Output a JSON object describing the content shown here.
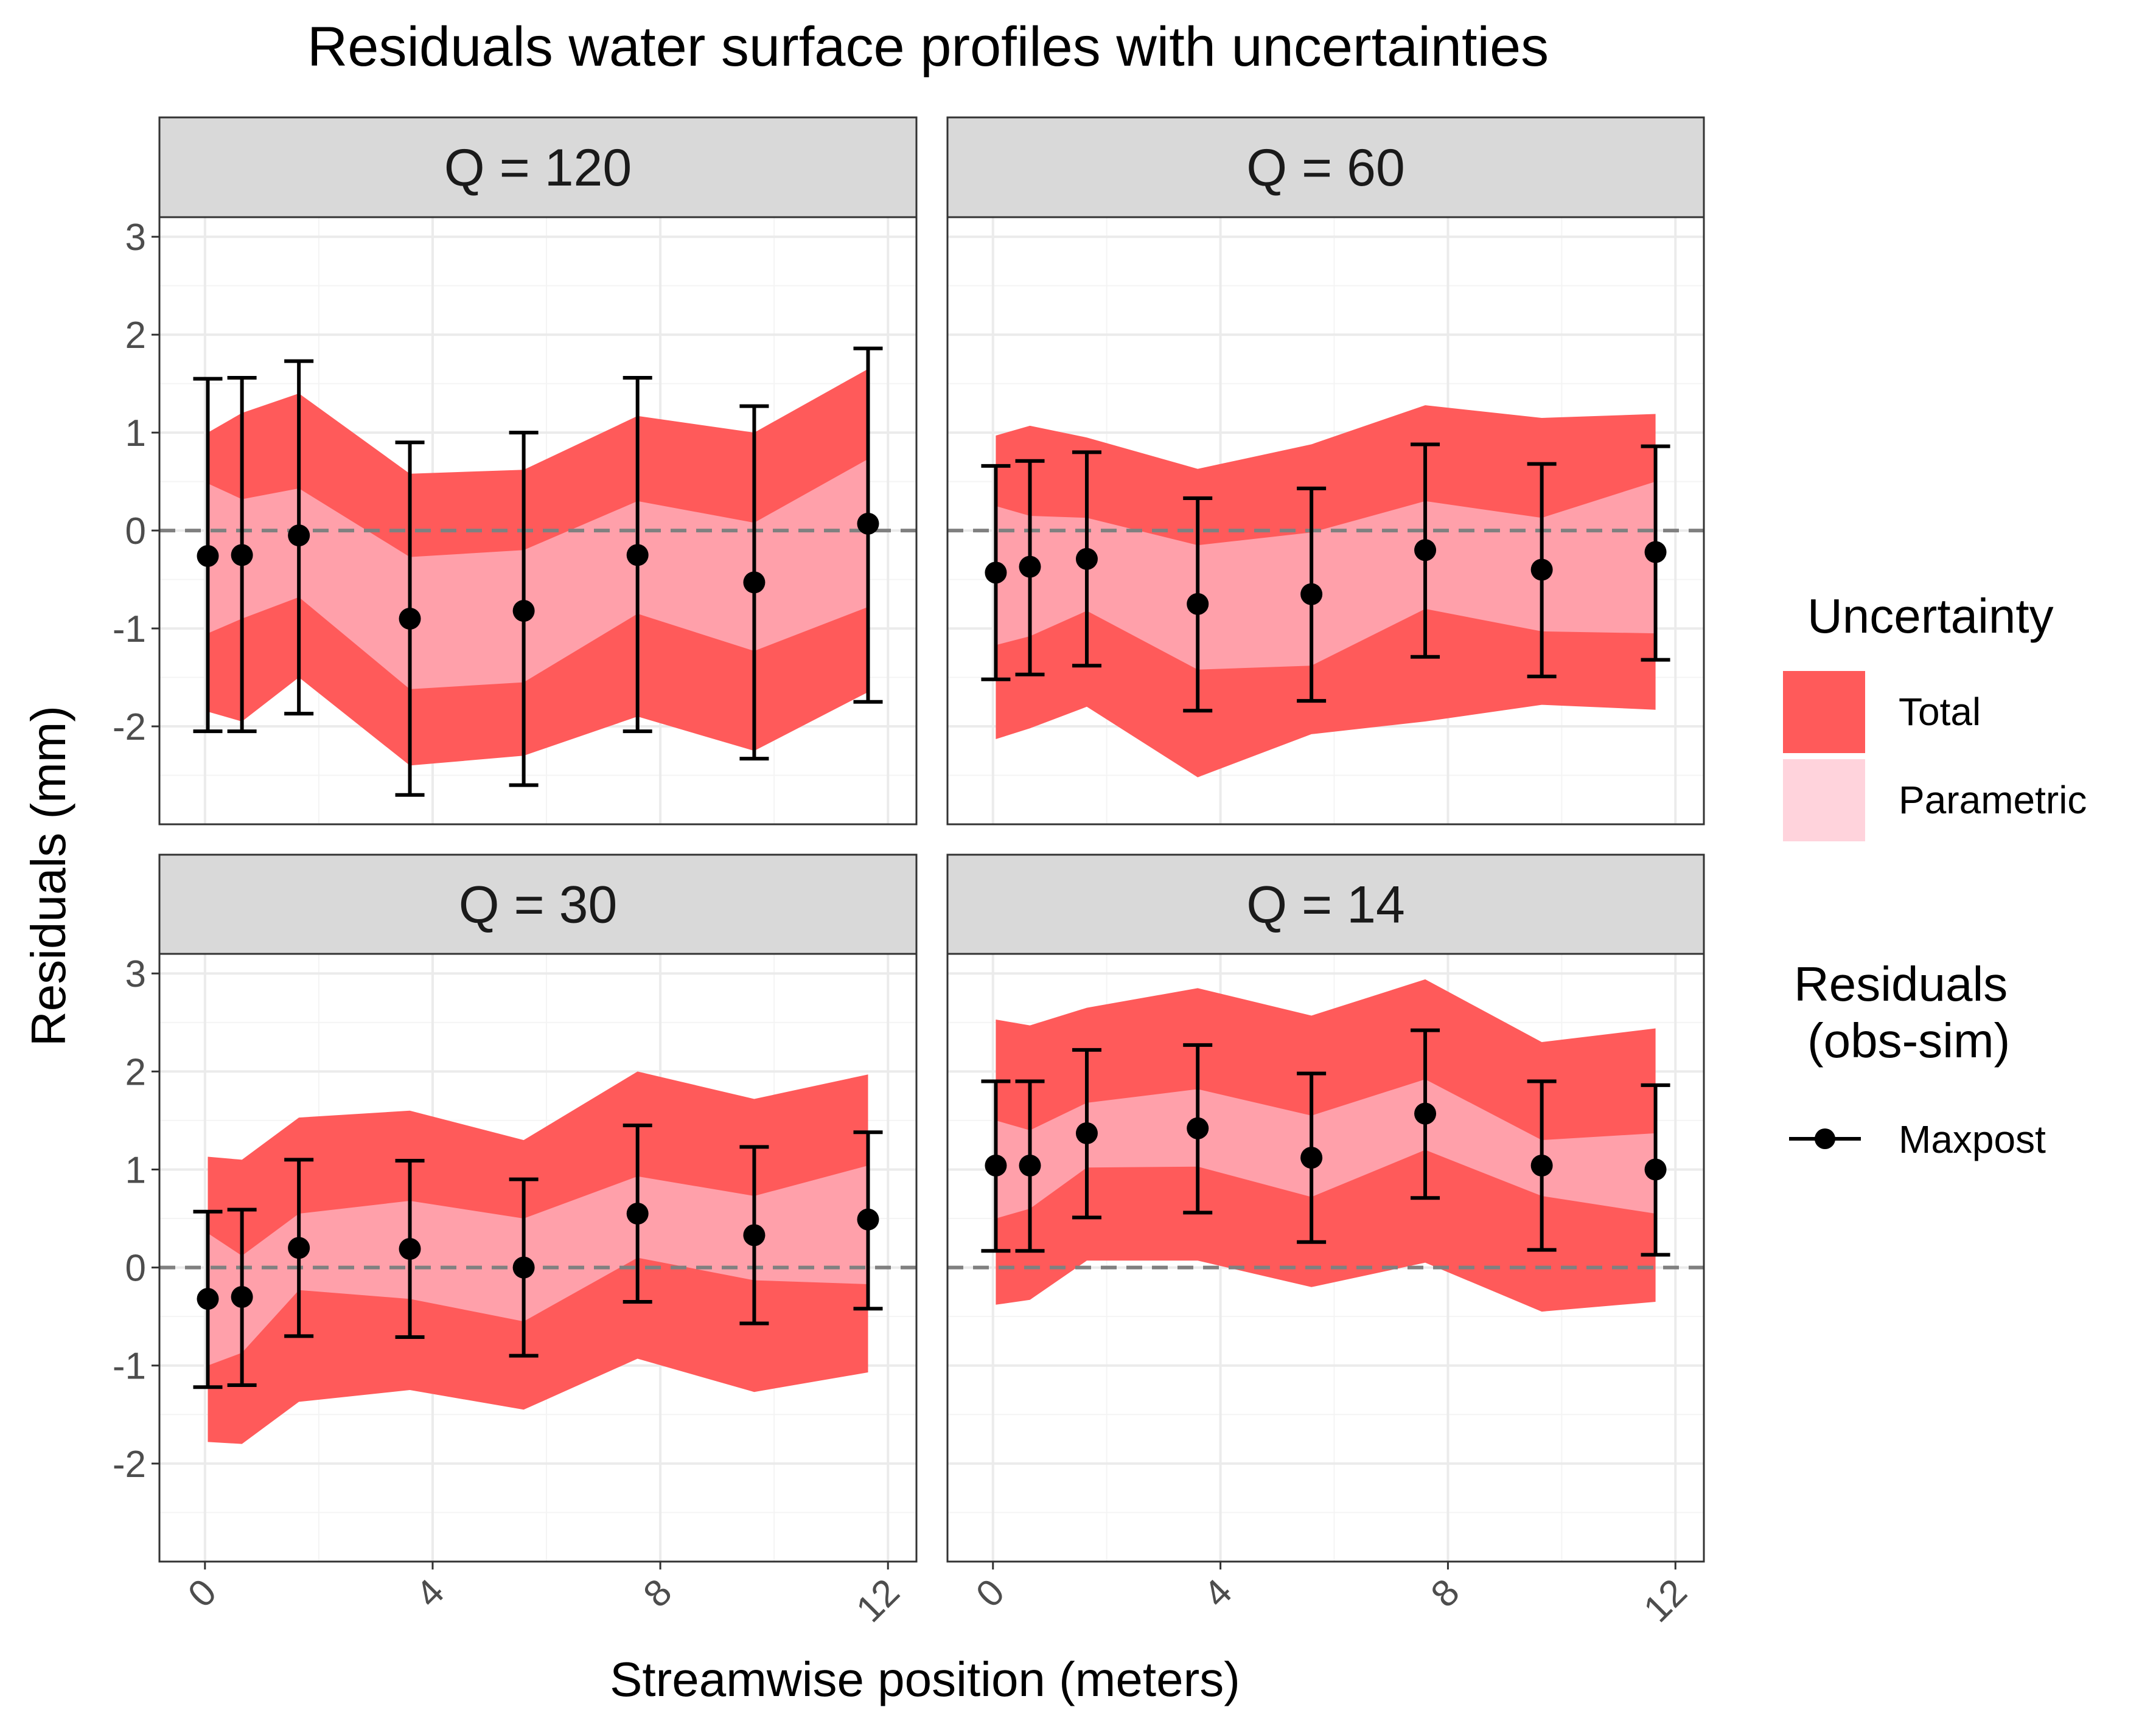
{
  "chart_data": {
    "type": "line",
    "title": "Residuals water surface profiles with uncertainties",
    "xlabel": "Streamwise position (meters)",
    "ylabel": "Residuals (mm)",
    "xlim": [
      -0.8,
      12.5
    ],
    "ylim": [
      -3.0,
      3.2
    ],
    "x_ticks": [
      0,
      4,
      8,
      12
    ],
    "x_tick_labels": [
      "0",
      "4",
      "8",
      "12"
    ],
    "y_ticks": [
      -2,
      -1,
      0,
      1,
      2,
      3
    ],
    "y_tick_labels": [
      "-2",
      "-1",
      "0",
      "1",
      "2",
      "3"
    ],
    "grid": true,
    "reference_line": 0,
    "legend": {
      "placement": "right",
      "uncertainty": {
        "title": "Uncertainty",
        "items": [
          {
            "label": "Total",
            "color": "#ff5a5a"
          },
          {
            "label": "Parametric",
            "color": "#ffd3dc"
          }
        ]
      },
      "residuals": {
        "title_line1": "Residuals",
        "title_line2": "(obs-sim)",
        "items": [
          {
            "label": "Maxpost",
            "color": "#000000"
          }
        ]
      }
    },
    "colors": {
      "total_band": "#ff5a5a",
      "parametric_band": "#ffa0aa",
      "strip_bg": "#d9d9d9",
      "grid_major": "#ebebeb",
      "grid_minor": "#f4f4f4",
      "zero_line": "#808080",
      "points": "#000000"
    },
    "x": [
      0.05,
      0.65,
      1.65,
      3.6,
      5.6,
      7.6,
      9.65,
      11.65
    ],
    "panels": [
      {
        "strip": "Q = 120",
        "total_upper": [
          1.0,
          1.2,
          1.4,
          0.58,
          0.62,
          1.17,
          1.0,
          1.65
        ],
        "total_lower": [
          -1.85,
          -1.95,
          -1.5,
          -2.4,
          -2.3,
          -1.9,
          -2.25,
          -1.65
        ],
        "param_upper": [
          0.48,
          0.32,
          0.43,
          -0.27,
          -0.2,
          0.3,
          0.08,
          0.73
        ],
        "param_lower": [
          -1.05,
          -0.9,
          -0.68,
          -1.62,
          -1.55,
          -0.85,
          -1.23,
          -0.78
        ],
        "maxpost": [
          -0.26,
          -0.25,
          -0.05,
          -0.9,
          -0.82,
          -0.25,
          -0.53,
          0.07
        ],
        "err_upper": [
          1.55,
          1.56,
          1.73,
          0.9,
          1.0,
          1.56,
          1.27,
          1.86
        ],
        "err_lower": [
          -2.05,
          -2.05,
          -1.87,
          -2.7,
          -2.6,
          -2.05,
          -2.33,
          -1.75
        ]
      },
      {
        "strip": "Q = 60",
        "total_upper": [
          0.97,
          1.07,
          0.95,
          0.63,
          0.88,
          1.28,
          1.15,
          1.19
        ],
        "total_lower": [
          -2.13,
          -2.02,
          -1.8,
          -2.52,
          -2.08,
          -1.95,
          -1.78,
          -1.83
        ],
        "param_upper": [
          0.25,
          0.15,
          0.13,
          -0.15,
          -0.02,
          0.3,
          0.13,
          0.5
        ],
        "param_lower": [
          -1.17,
          -1.08,
          -0.82,
          -1.42,
          -1.38,
          -0.8,
          -1.03,
          -1.05
        ],
        "maxpost": [
          -0.43,
          -0.37,
          -0.29,
          -0.75,
          -0.65,
          -0.2,
          -0.4,
          -0.22
        ],
        "err_upper": [
          0.66,
          0.71,
          0.8,
          0.33,
          0.43,
          0.88,
          0.68,
          0.86
        ],
        "err_lower": [
          -1.52,
          -1.47,
          -1.38,
          -1.84,
          -1.74,
          -1.29,
          -1.49,
          -1.32
        ]
      },
      {
        "strip": "Q = 30",
        "total_upper": [
          1.13,
          1.1,
          1.53,
          1.6,
          1.3,
          2.0,
          1.72,
          1.97
        ],
        "total_lower": [
          -1.78,
          -1.8,
          -1.37,
          -1.25,
          -1.45,
          -0.93,
          -1.27,
          -1.07
        ],
        "param_upper": [
          0.35,
          0.12,
          0.55,
          0.68,
          0.5,
          0.93,
          0.73,
          1.04
        ],
        "param_lower": [
          -1.0,
          -0.87,
          -0.23,
          -0.32,
          -0.55,
          0.1,
          -0.13,
          -0.17
        ],
        "maxpost": [
          -0.32,
          -0.3,
          0.2,
          0.19,
          0.0,
          0.55,
          0.33,
          0.49
        ],
        "err_upper": [
          0.57,
          0.59,
          1.1,
          1.09,
          0.9,
          1.45,
          1.23,
          1.38
        ],
        "err_lower": [
          -1.22,
          -1.2,
          -0.7,
          -0.71,
          -0.9,
          -0.35,
          -0.57,
          -0.42
        ]
      },
      {
        "strip": "Q = 14",
        "total_upper": [
          2.53,
          2.47,
          2.65,
          2.85,
          2.57,
          2.94,
          2.3,
          2.44
        ],
        "total_lower": [
          -0.38,
          -0.33,
          0.07,
          0.07,
          -0.2,
          0.05,
          -0.45,
          -0.35
        ],
        "param_upper": [
          1.5,
          1.4,
          1.68,
          1.82,
          1.55,
          1.92,
          1.3,
          1.37
        ],
        "param_lower": [
          0.5,
          0.6,
          1.02,
          1.03,
          0.72,
          1.2,
          0.73,
          0.55
        ],
        "maxpost": [
          1.04,
          1.04,
          1.37,
          1.42,
          1.12,
          1.57,
          1.04,
          1.0
        ],
        "err_upper": [
          1.9,
          1.9,
          2.22,
          2.27,
          1.98,
          2.42,
          1.9,
          1.86
        ],
        "err_lower": [
          0.17,
          0.17,
          0.51,
          0.56,
          0.26,
          0.71,
          0.18,
          0.13
        ]
      }
    ]
  }
}
